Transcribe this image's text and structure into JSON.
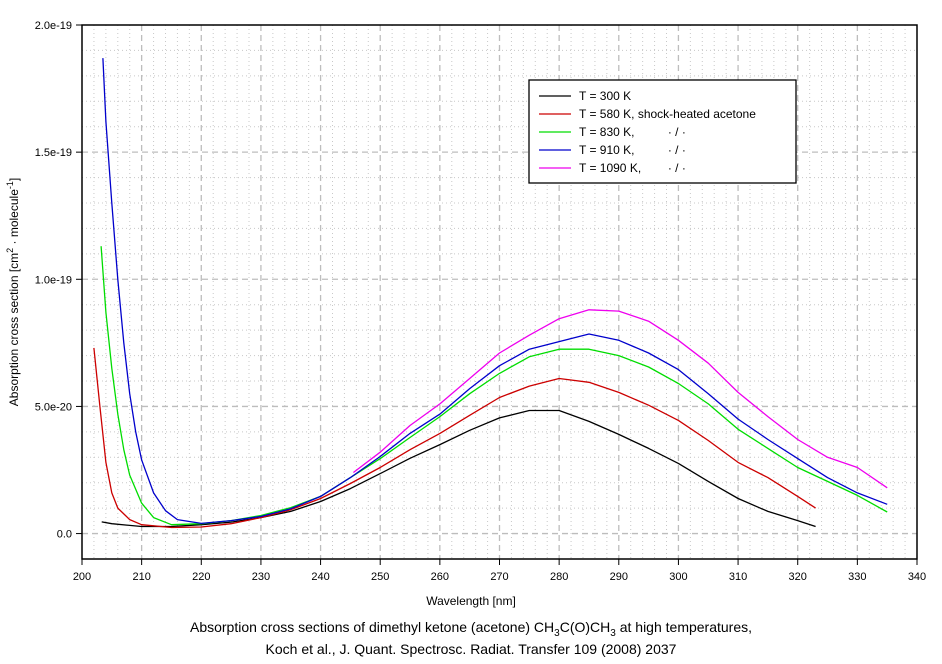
{
  "chart_data": {
    "type": "line",
    "title": "",
    "xlabel": "Wavelength [nm]",
    "ylabel": "Absorption cross section [cm² · molecule⁻¹]",
    "ylabel_parts": {
      "pre": "Absorption cross section [cm",
      "sup1": "2",
      "mid": " · molecule",
      "sup2": "-1",
      "post": "]"
    },
    "xlim": [
      200,
      340
    ],
    "ylim": [
      -1e-20,
      2e-19
    ],
    "xticks": [
      200,
      210,
      220,
      230,
      240,
      250,
      260,
      270,
      280,
      290,
      300,
      310,
      320,
      330,
      340
    ],
    "xtick_labels": [
      "200",
      "210",
      "220",
      "230",
      "240",
      "250",
      "260",
      "270",
      "280",
      "290",
      "300",
      "310",
      "320",
      "330",
      "340"
    ],
    "yticks": [
      0,
      5e-20,
      1e-19,
      1.5e-19,
      2e-19
    ],
    "ytick_labels": [
      "0.0",
      "5.0e-20",
      "1.0e-19",
      "1.5e-19",
      "2.0e-19"
    ],
    "grid": true,
    "legend_position": "top-right",
    "series": [
      {
        "name": "T = 300 K",
        "color": "#000000",
        "x": [
          203.3,
          205,
          210,
          215,
          220,
          225,
          230,
          235,
          240,
          245,
          250,
          255,
          260,
          265,
          270,
          275,
          280,
          285,
          290,
          295,
          300,
          305,
          310,
          315,
          320,
          323
        ],
        "y": [
          4.6e-21,
          3.9e-21,
          2.8e-21,
          2.8e-21,
          3.5e-21,
          4.5e-21,
          6.3e-21,
          8.7e-21,
          1.26e-20,
          1.77e-20,
          2.36e-20,
          2.96e-20,
          3.5e-20,
          4.06e-20,
          4.55e-20,
          4.84e-20,
          4.84e-20,
          4.41e-20,
          3.9e-20,
          3.35e-20,
          2.76e-20,
          2.05e-20,
          1.38e-20,
          8.7e-21,
          5.1e-21,
          2.8e-21
        ]
      },
      {
        "name": "T = 580 K, shock-heated acetone",
        "color": "#cc0000",
        "x": [
          202,
          203,
          204,
          205,
          206,
          208,
          210,
          215,
          220,
          225,
          230,
          235,
          240,
          245,
          250,
          255,
          260,
          265,
          270,
          275,
          280,
          285,
          290,
          295,
          300,
          305,
          310,
          315,
          320,
          323
        ],
        "y": [
          7.3e-20,
          5e-20,
          2.8e-20,
          1.6e-20,
          1e-20,
          5.5e-21,
          3.5e-21,
          2.4e-21,
          2.6e-21,
          3.9e-21,
          6.3e-21,
          9.4e-21,
          1.38e-20,
          1.97e-20,
          2.6e-20,
          3.3e-20,
          3.94e-20,
          4.65e-20,
          5.35e-20,
          5.8e-20,
          6.1e-20,
          5.95e-20,
          5.55e-20,
          5.05e-20,
          4.45e-20,
          3.66e-20,
          2.8e-20,
          2.2e-20,
          1.46e-20,
          1e-20
        ]
      },
      {
        "name": "T = 830 K,          · / ·",
        "color": "#00dd00",
        "x": [
          203.2,
          204,
          205,
          206,
          207,
          208,
          210,
          212,
          215,
          220,
          225,
          230,
          235,
          240,
          245,
          250,
          255,
          260,
          265,
          270,
          275,
          280,
          285,
          290,
          295,
          300,
          305,
          310,
          315,
          320,
          325,
          330,
          335
        ],
        "y": [
          1.13e-19,
          8.7e-20,
          6.5e-20,
          4.7e-20,
          3.3e-20,
          2.3e-20,
          1.2e-20,
          6.3e-21,
          3.5e-21,
          3.9e-21,
          5.1e-21,
          7.1e-21,
          1.02e-20,
          1.46e-20,
          2.2e-20,
          2.95e-20,
          3.78e-20,
          4.6e-20,
          5.5e-20,
          6.3e-20,
          6.95e-20,
          7.25e-20,
          7.25e-20,
          7e-20,
          6.55e-20,
          5.9e-20,
          5.1e-20,
          4.1e-20,
          3.35e-20,
          2.6e-20,
          2.05e-20,
          1.5e-20,
          8.5e-21
        ]
      },
      {
        "name": "T = 910 K,          · / ·",
        "color": "#0000cc",
        "x": [
          203.5,
          204,
          205,
          206,
          207,
          208,
          209,
          210,
          212,
          214,
          216,
          220,
          225,
          230,
          235,
          240,
          245,
          250,
          255,
          260,
          265,
          270,
          275,
          280,
          285,
          290,
          295,
          300,
          305,
          310,
          315,
          320,
          325,
          330,
          335
        ],
        "y": [
          1.87e-19,
          1.62e-19,
          1.3e-19,
          1e-19,
          7.5e-20,
          5.5e-20,
          4e-20,
          2.9e-20,
          1.6e-20,
          9e-21,
          5.5e-21,
          4e-21,
          5.1e-21,
          6.7e-21,
          9.8e-21,
          1.46e-20,
          2.2e-20,
          3.03e-20,
          3.94e-20,
          4.7e-20,
          5.7e-20,
          6.6e-20,
          7.25e-20,
          7.55e-20,
          7.85e-20,
          7.6e-20,
          7.1e-20,
          6.45e-20,
          5.5e-20,
          4.5e-20,
          3.7e-20,
          2.95e-20,
          2.2e-20,
          1.6e-20,
          1.15e-20
        ]
      },
      {
        "name": "T = 1090 K,        · / ·",
        "color": "#ee00ee",
        "x": [
          245.5,
          250,
          255,
          260,
          265,
          270,
          275,
          280,
          285,
          290,
          295,
          300,
          305,
          310,
          315,
          320,
          325,
          330,
          335
        ],
        "y": [
          2.4e-20,
          3.2e-20,
          4.25e-20,
          5.1e-20,
          6.1e-20,
          7.1e-20,
          7.8e-20,
          8.45e-20,
          8.8e-20,
          8.75e-20,
          8.35e-20,
          7.6e-20,
          6.7e-20,
          5.55e-20,
          4.6e-20,
          3.7e-20,
          3e-20,
          2.6e-20,
          1.8e-20
        ]
      }
    ]
  },
  "caption": {
    "line1_pre": "Absorption cross sections of dimethyl ketone (acetone) CH",
    "line1_sub1": "3",
    "line1_mid": "C(O)CH",
    "line1_sub2": "3",
    "line1_post": " at high temperatures,",
    "line2": "Koch et al., J. Quant. Spectrosc. Radiat. Transfer 109 (2008) 2037"
  }
}
